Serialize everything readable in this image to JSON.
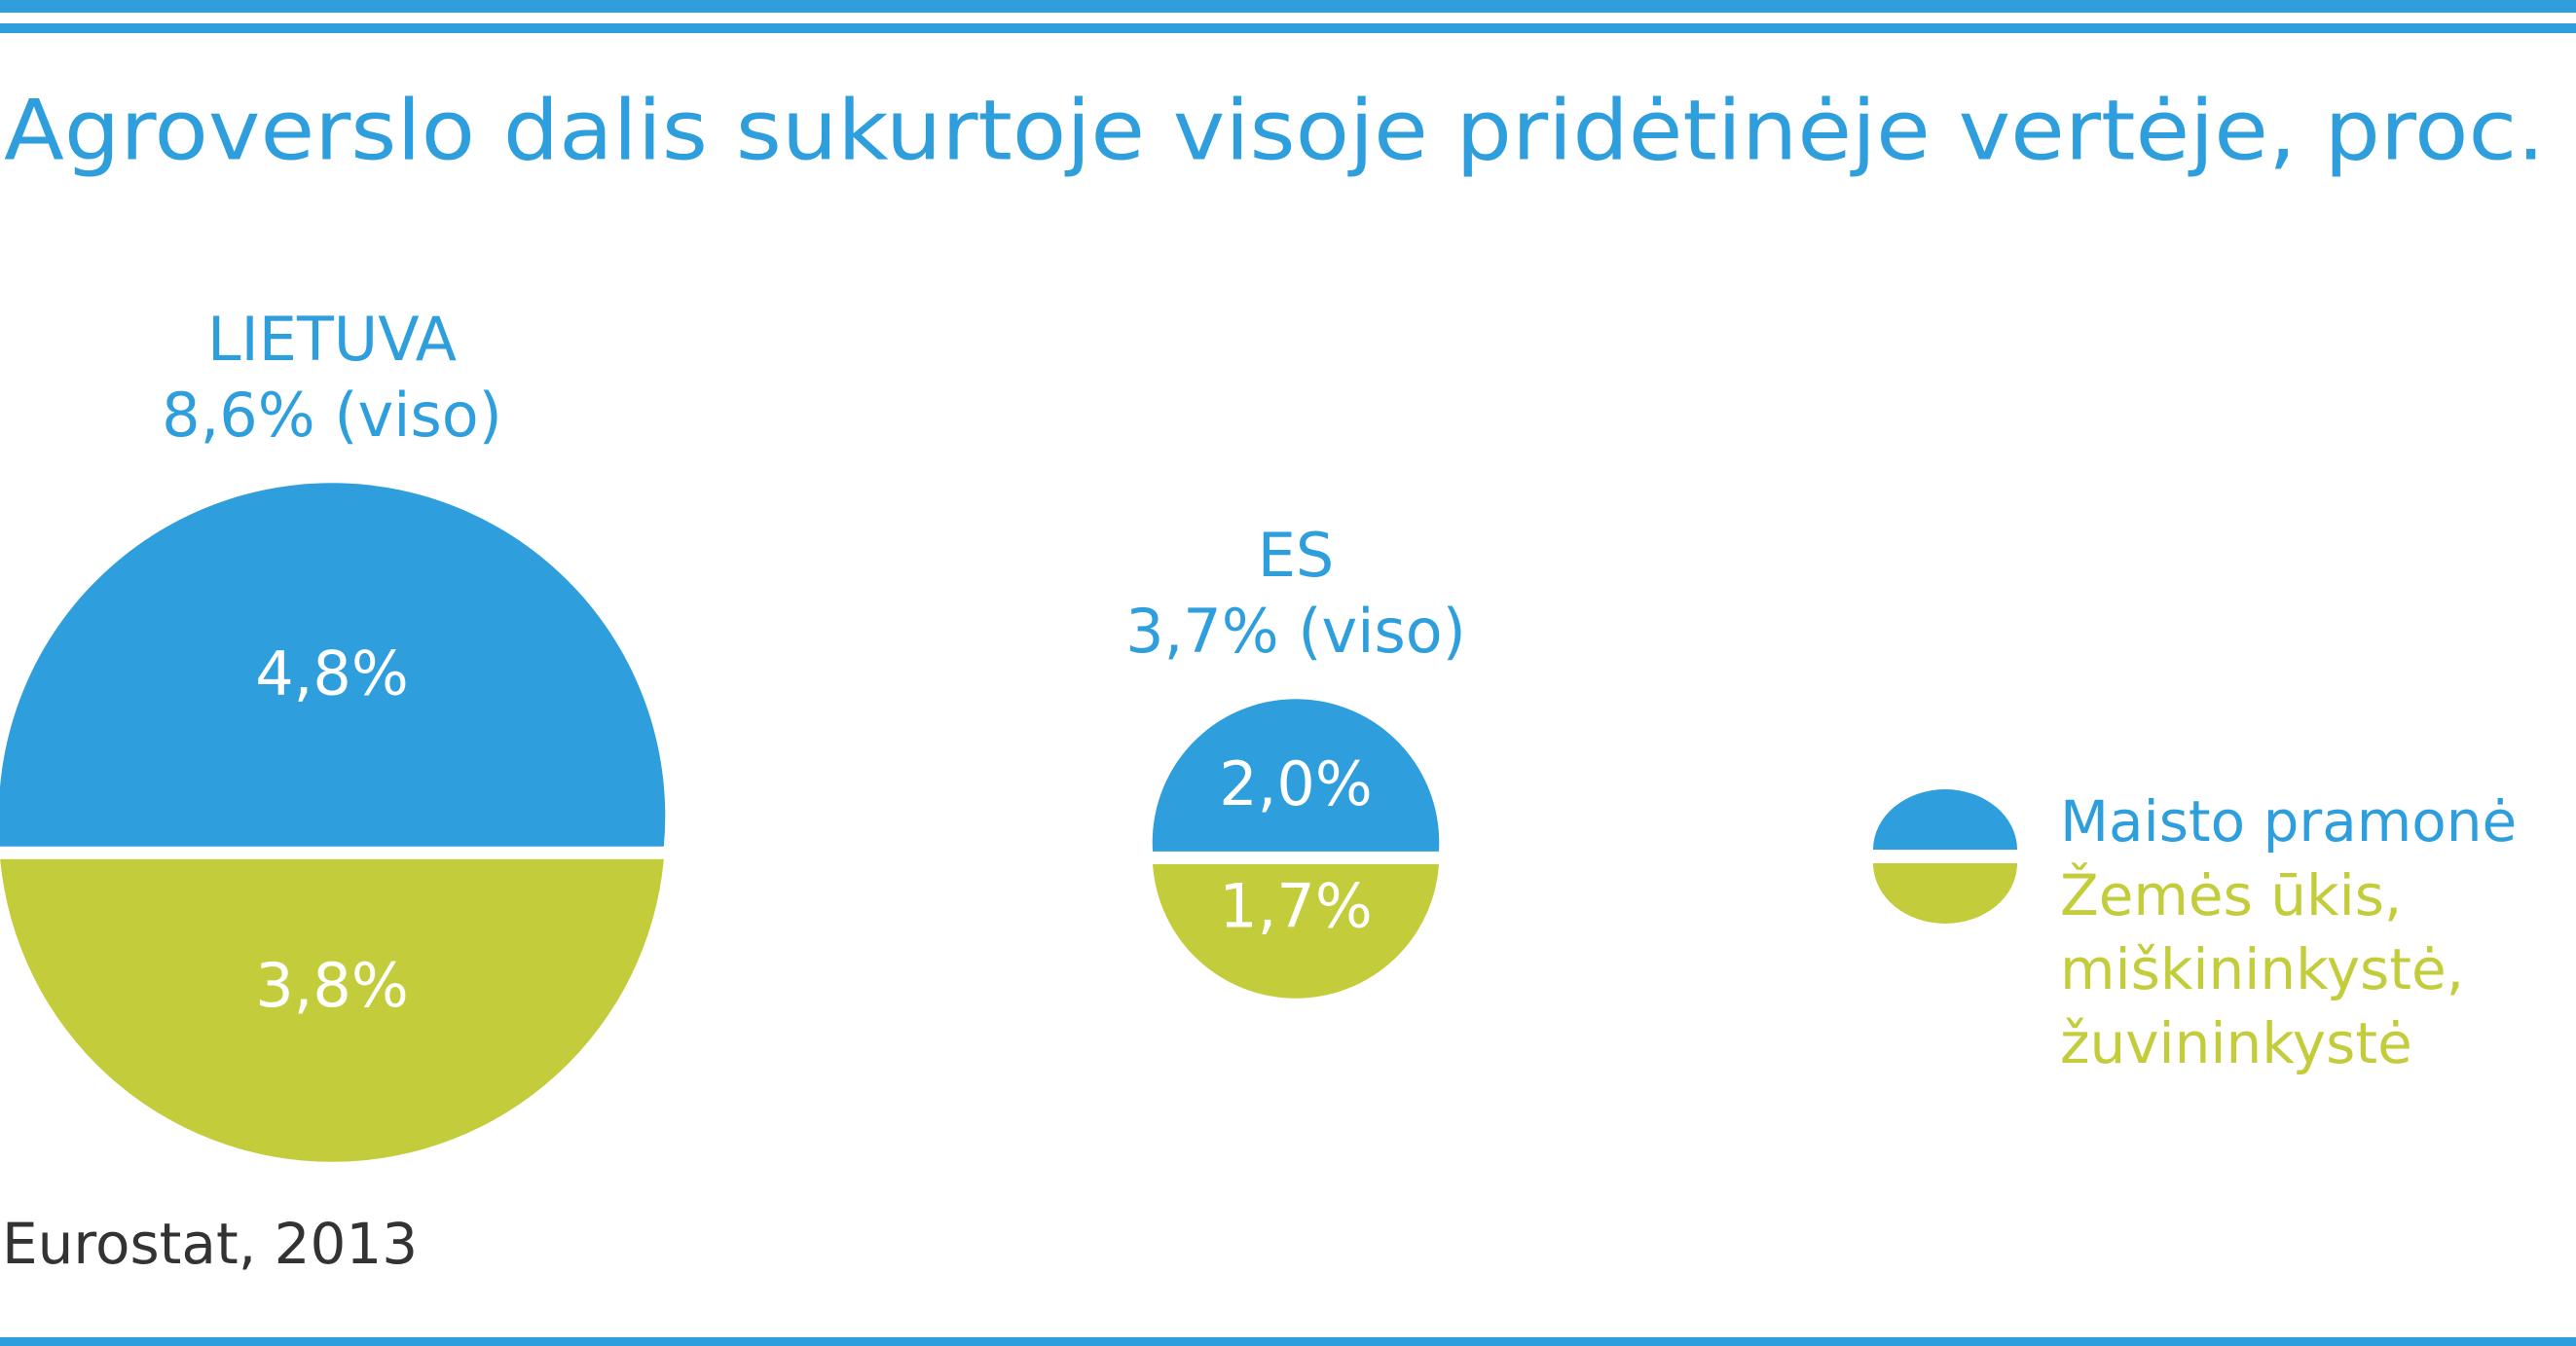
{
  "chart_data": {
    "type": "split-circle",
    "title": "Agroverslo dalis sukurtoje visoje pridėtinėje vertėje, proc.",
    "source": "Eurostat, 2013",
    "series": [
      {
        "name": "Maisto pramonė",
        "color": "#2e9fdc"
      },
      {
        "name": "Žemės ūkis, miškininkystė, žuvininkystė",
        "color": "#c3cc3a"
      }
    ],
    "groups": [
      {
        "name": "LIETUVA",
        "total": 8.6,
        "total_label": "8,6% (viso)",
        "values": [
          4.8,
          3.8
        ],
        "value_labels": [
          "4,8%",
          "3,8%"
        ]
      },
      {
        "name": "ES",
        "total": 3.7,
        "total_label": "3,7% (viso)",
        "values": [
          2.0,
          1.7
        ],
        "value_labels": [
          "2,0%",
          "1,7%"
        ]
      }
    ]
  }
}
